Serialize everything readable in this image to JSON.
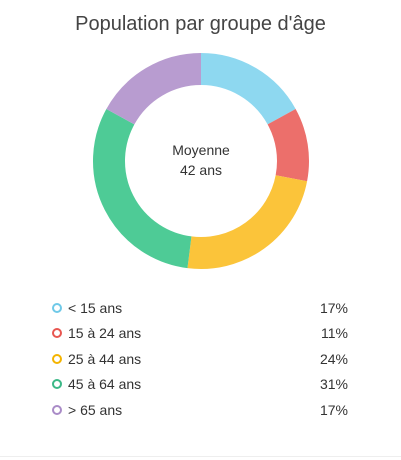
{
  "chart_data": {
    "type": "pie",
    "variant": "donut",
    "title": "Population par groupe d'âge",
    "center": {
      "line1": "Moyenne",
      "line2": "42 ans"
    },
    "legend_placement": "bottom",
    "categories": [
      "< 15 ans",
      "15 à 24 ans",
      "25 à 44 ans",
      "45 à 64 ans",
      "> 65 ans"
    ],
    "values": [
      17,
      11,
      24,
      31,
      17
    ],
    "value_labels": [
      "17%",
      "11%",
      "24%",
      "31%",
      "17%"
    ],
    "unit": "%",
    "colors": [
      "#8ed8f0",
      "#ec6f6b",
      "#fbc43a",
      "#4ecb96",
      "#b89cd0"
    ],
    "legend_colors": [
      "#6fc9e8",
      "#e85650",
      "#f4b400",
      "#3cb887",
      "#a98bc7"
    ]
  }
}
